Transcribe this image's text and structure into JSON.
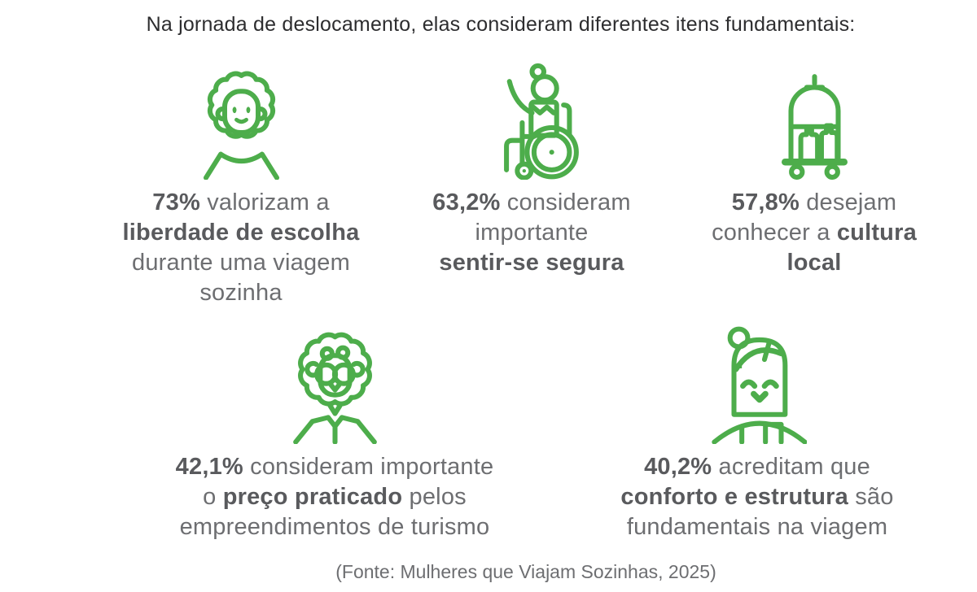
{
  "title": "Na jornada de deslocamento, elas consideram diferentes itens fundamentais:",
  "source": "(Fonte: Mulheres que Viajam Sozinhas, 2025)",
  "colors": {
    "accent_green": "#4dad4b",
    "body_text": "#6d6e71",
    "title_text": "#2d2d2f"
  },
  "chart_data": {
    "type": "pictogram",
    "title": "Na jornada de deslocamento, elas consideram diferentes itens fundamentais:",
    "categories": [
      "liberdade de escolha durante uma viagem sozinha",
      "sentir-se segura",
      "conhecer a cultura local",
      "preço praticado pelos empreendimentos de turismo",
      "conforto e estrutura fundamentais na viagem"
    ],
    "values": [
      73,
      63.2,
      57.8,
      42.1,
      40.2
    ],
    "unit": "%",
    "source": "(Fonte: Mulheres que Viajam Sozinhas, 2025)"
  },
  "stats": [
    {
      "icon": "curly-afro-woman-icon",
      "value": "73%",
      "full_text": "73% valorizam a liberdade de escolha durante uma viagem sozinha",
      "segments": [
        {
          "text": "73%",
          "bold": true
        },
        {
          "text": " valorizam a\n",
          "bold": false
        },
        {
          "text": "liberdade de escolha",
          "bold": true
        },
        {
          "text": "\ndurante uma viagem\nsozinha",
          "bold": false
        }
      ]
    },
    {
      "icon": "wheelchair-woman-icon",
      "value": "63,2%",
      "full_text": "63,2% consideram importante sentir-se segura",
      "segments": [
        {
          "text": "63,2%",
          "bold": true
        },
        {
          "text": " consideram\nimportante\n",
          "bold": false
        },
        {
          "text": "sentir-se segura",
          "bold": true
        }
      ]
    },
    {
      "icon": "luggage-cart-icon",
      "value": "57,8%",
      "full_text": "57,8% desejam conhecer a cultura local",
      "segments": [
        {
          "text": "57,8%",
          "bold": true
        },
        {
          "text": " desejam\nconhecer a ",
          "bold": false
        },
        {
          "text": "cultura\nlocal",
          "bold": true
        }
      ]
    },
    {
      "icon": "glasses-curly-woman-icon",
      "value": "42,1%",
      "full_text": "42,1% consideram importante o preço praticado pelos empreendimentos de turismo",
      "segments": [
        {
          "text": "42,1%",
          "bold": true
        },
        {
          "text": " consideram importante\no ",
          "bold": false
        },
        {
          "text": "preço praticado",
          "bold": true
        },
        {
          "text": " pelos\nempreendimentos de turismo",
          "bold": false
        }
      ]
    },
    {
      "icon": "bun-hair-woman-icon",
      "value": "40,2%",
      "full_text": "40,2% acreditam que conforto e estrutura são fundamentais na viagem",
      "segments": [
        {
          "text": "40,2%",
          "bold": true
        },
        {
          "text": " acreditam que\n",
          "bold": false
        },
        {
          "text": "conforto e estrutura",
          "bold": true
        },
        {
          "text": " são\nfundamentais na viagem",
          "bold": false
        }
      ]
    }
  ]
}
